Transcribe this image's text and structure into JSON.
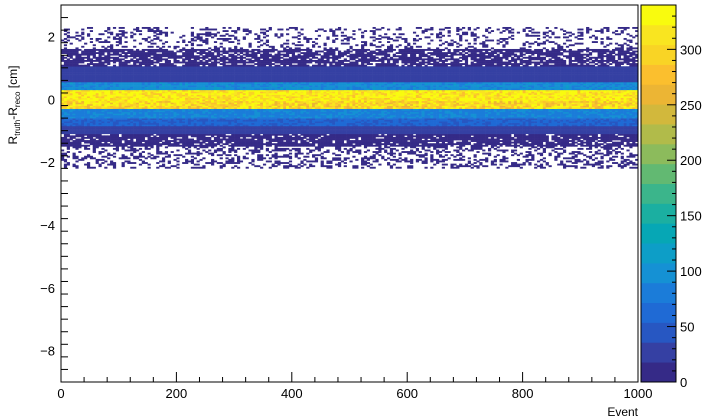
{
  "chart_data": {
    "type": "heatmap",
    "title": "",
    "xlabel": "Event",
    "ylabel": {
      "main1": "R",
      "sub1": "truth",
      "mid": "-R",
      "sub2": "reco",
      "unit": " [cm]"
    },
    "xlim": [
      0,
      1000
    ],
    "ylim": [
      -9,
      3
    ],
    "x_ticks": [
      0,
      200,
      400,
      600,
      800,
      1000
    ],
    "y_ticks": [
      -8,
      -6,
      -4,
      -2,
      0,
      2
    ],
    "colorbar": {
      "zlim": [
        0,
        340
      ],
      "ticks": [
        0,
        50,
        100,
        150,
        200,
        250,
        300
      ]
    },
    "bands": [
      {
        "y0": -2.2,
        "y1": -1.5,
        "z": 2,
        "density": 0.35
      },
      {
        "y0": -1.5,
        "y1": -1.1,
        "z": 12,
        "density": 0.85
      },
      {
        "y0": -1.1,
        "y1": -0.85,
        "z": 30,
        "density": 1.0
      },
      {
        "y0": -0.85,
        "y1": -0.6,
        "z": 55,
        "density": 1.0
      },
      {
        "y0": -0.6,
        "y1": -0.3,
        "z": 85,
        "density": 1.0
      },
      {
        "y0": -0.3,
        "y1": -0.05,
        "z": 300,
        "density": 1.0
      },
      {
        "y0": -0.05,
        "y1": 0.3,
        "z": 325,
        "density": 1.0
      },
      {
        "y0": 0.3,
        "y1": 0.55,
        "z": 95,
        "density": 1.0
      },
      {
        "y0": 0.55,
        "y1": 1.05,
        "z": 25,
        "density": 1.0
      },
      {
        "y0": 1.05,
        "y1": 1.6,
        "z": 8,
        "density": 0.75
      },
      {
        "y0": 1.6,
        "y1": 2.3,
        "z": 2,
        "density": 0.25
      }
    ],
    "palette": [
      "#352a87",
      "#3540a3",
      "#2757c2",
      "#1f6ad5",
      "#1b7cd9",
      "#1591d4",
      "#0d9ec7",
      "#06a7b5",
      "#1bafa1",
      "#3bb58b",
      "#62b972",
      "#8cbb5c",
      "#b1bb4a",
      "#d2b83c",
      "#ecb534",
      "#fbbf2e",
      "#f9d425",
      "#f9e520",
      "#f9fb0e"
    ]
  }
}
